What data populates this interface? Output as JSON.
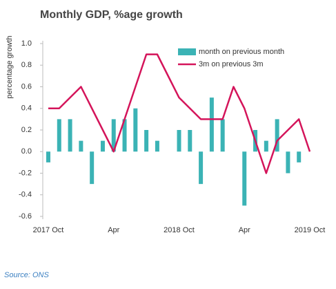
{
  "chart_data": {
    "type": "combo",
    "title": "Monthly GDP, %age growth",
    "y_label": "percentage growth",
    "source": "Source: ONS",
    "categories": [
      "2017 Oct",
      null,
      null,
      null,
      null,
      null,
      "Apr",
      null,
      null,
      null,
      null,
      null,
      "2018 Oct",
      null,
      null,
      null,
      null,
      null,
      "Apr",
      null,
      null,
      null,
      null,
      null,
      "2019 Oct"
    ],
    "ylim": [
      -0.6,
      1.0
    ],
    "yticks": [
      {
        "value": 1.0,
        "label": "1.0"
      },
      0.8,
      0.6,
      0.4,
      0.2,
      {
        "value": 0,
        "label": "0.0"
      },
      -0.2,
      -0.4,
      -0.6
    ],
    "legend": "top-right",
    "series": [
      {
        "name": "month on previous month",
        "type": "bar",
        "color": "#3bb3b5",
        "values": [
          -0.1,
          0.3,
          0.3,
          0.1,
          -0.3,
          0.1,
          0.3,
          0.3,
          0.4,
          0.2,
          0.1,
          0,
          0.2,
          0.2,
          -0.3,
          0.5,
          0.3,
          0,
          -0.5,
          0.2,
          0.1,
          0.3,
          -0.2,
          -0.1,
          0
        ]
      },
      {
        "name": "3m on previous 3m",
        "type": "line",
        "color": "#d4145a",
        "values": [
          0.4,
          0.4,
          0.5,
          0.6,
          0.4,
          0.2,
          0,
          0.3,
          0.6,
          0.9,
          0.9,
          0.7,
          0.5,
          0.4,
          0.3,
          0.3,
          0.3,
          0.6,
          0.4,
          0.1,
          -0.2,
          0.1,
          0.2,
          0.3,
          0
        ]
      }
    ]
  }
}
